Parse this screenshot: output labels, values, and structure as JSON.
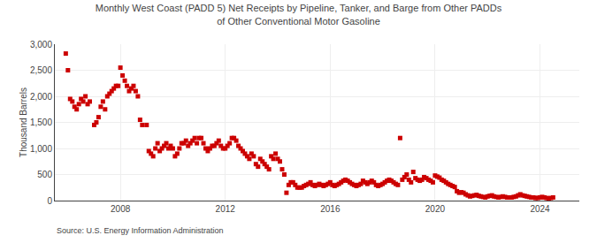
{
  "chart_data": {
    "type": "scatter",
    "title": "Monthly West Coast (PADD 5) Net Receipts by Pipeline, Tanker, and Barge from Other PADDs",
    "subtitle": "of Other Conventional Motor Gasoline",
    "ylabel": "Thousand Barrels",
    "annotations": [
      "Source: U.S. Energy Information Administration"
    ],
    "color": "#cc0000",
    "marker": "square",
    "grid": true,
    "xlim": [
      2005.5,
      2025.5
    ],
    "xticks": [
      2008,
      2012,
      2016,
      2020,
      2024
    ],
    "ylim": [
      0,
      3000
    ],
    "yticks": [
      0,
      500,
      {
        "value": 1000,
        "label": "1,000"
      },
      {
        "value": 1500,
        "label": "1,500"
      },
      {
        "value": 2000,
        "label": "2,000"
      },
      {
        "value": 2500,
        "label": "2,500"
      },
      {
        "value": 3000,
        "label": "3,000"
      }
    ],
    "x": [
      2005.917,
      2006.0,
      2006.083,
      2006.167,
      2006.25,
      2006.333,
      2006.417,
      2006.5,
      2006.583,
      2006.667,
      2006.75,
      2006.833,
      2007.0,
      2007.083,
      2007.167,
      2007.25,
      2007.333,
      2007.417,
      2007.5,
      2007.583,
      2007.667,
      2007.75,
      2007.833,
      2007.917,
      2008.0,
      2008.083,
      2008.167,
      2008.25,
      2008.333,
      2008.417,
      2008.5,
      2008.583,
      2008.667,
      2008.75,
      2008.833,
      2009.0,
      2009.083,
      2009.167,
      2009.25,
      2009.333,
      2009.417,
      2009.5,
      2009.583,
      2009.667,
      2009.75,
      2009.833,
      2009.917,
      2010.0,
      2010.083,
      2010.167,
      2010.25,
      2010.333,
      2010.417,
      2010.5,
      2010.583,
      2010.667,
      2010.75,
      2010.833,
      2010.917,
      2011.0,
      2011.083,
      2011.167,
      2011.25,
      2011.333,
      2011.417,
      2011.5,
      2011.583,
      2011.667,
      2011.75,
      2011.833,
      2011.917,
      2012.0,
      2012.083,
      2012.167,
      2012.25,
      2012.333,
      2012.417,
      2012.5,
      2012.583,
      2012.667,
      2012.75,
      2012.833,
      2012.917,
      2013.0,
      2013.083,
      2013.167,
      2013.25,
      2013.333,
      2013.417,
      2013.5,
      2013.583,
      2013.667,
      2013.75,
      2013.833,
      2013.917,
      2014.0,
      2014.083,
      2014.167,
      2014.25,
      2014.333,
      2014.417,
      2014.5,
      2014.583,
      2014.667,
      2014.75,
      2014.833,
      2014.917,
      2015.0,
      2015.083,
      2015.167,
      2015.25,
      2015.333,
      2015.417,
      2015.5,
      2015.583,
      2015.667,
      2015.75,
      2015.833,
      2015.917,
      2016.0,
      2016.083,
      2016.167,
      2016.25,
      2016.333,
      2016.417,
      2016.5,
      2016.583,
      2016.667,
      2016.75,
      2016.833,
      2016.917,
      2017.0,
      2017.083,
      2017.167,
      2017.25,
      2017.333,
      2017.417,
      2017.5,
      2017.583,
      2017.667,
      2017.75,
      2017.833,
      2017.917,
      2018.0,
      2018.083,
      2018.167,
      2018.25,
      2018.333,
      2018.417,
      2018.5,
      2018.583,
      2018.667,
      2018.75,
      2018.833,
      2018.917,
      2019.0,
      2019.083,
      2019.167,
      2019.25,
      2019.333,
      2019.417,
      2019.5,
      2019.583,
      2019.667,
      2019.75,
      2019.833,
      2019.917,
      2020.0,
      2020.083,
      2020.167,
      2020.25,
      2020.333,
      2020.417,
      2020.5,
      2020.583,
      2020.667,
      2020.75,
      2020.833,
      2020.917,
      2021.0,
      2021.083,
      2021.167,
      2021.25,
      2021.333,
      2021.417,
      2021.5,
      2021.583,
      2021.667,
      2021.75,
      2021.833,
      2021.917,
      2022.0,
      2022.083,
      2022.167,
      2022.25,
      2022.333,
      2022.417,
      2022.5,
      2022.583,
      2022.667,
      2022.75,
      2022.833,
      2022.917,
      2023.0,
      2023.083,
      2023.167,
      2023.25,
      2023.333,
      2023.417,
      2023.5,
      2023.583,
      2023.667,
      2023.75,
      2023.833,
      2023.917,
      2024.0,
      2024.083,
      2024.167,
      2024.25,
      2024.333,
      2024.417,
      2024.5
    ],
    "values": [
      2820,
      2500,
      1950,
      1900,
      1800,
      1750,
      1850,
      1950,
      1900,
      2000,
      1850,
      1900,
      1450,
      1500,
      1600,
      1800,
      1900,
      1750,
      2000,
      2050,
      2100,
      2150,
      2200,
      2200,
      2550,
      2400,
      2300,
      2200,
      2100,
      2150,
      2200,
      2100,
      2000,
      1550,
      1450,
      1450,
      950,
      900,
      850,
      1000,
      1100,
      950,
      1000,
      1050,
      1100,
      1000,
      1050,
      1000,
      850,
      900,
      1000,
      1100,
      1100,
      1150,
      1050,
      1100,
      1150,
      1200,
      1100,
      1200,
      1200,
      1100,
      1000,
      950,
      1000,
      1050,
      1050,
      1100,
      1150,
      1050,
      1000,
      1000,
      1050,
      1100,
      1200,
      1200,
      1150,
      1050,
      1000,
      950,
      900,
      850,
      800,
      900,
      850,
      700,
      650,
      800,
      750,
      700,
      650,
      600,
      850,
      800,
      900,
      800,
      750,
      600,
      500,
      150,
      300,
      350,
      350,
      300,
      250,
      250,
      250,
      280,
      300,
      320,
      350,
      300,
      280,
      300,
      320,
      300,
      280,
      300,
      320,
      350,
      300,
      280,
      300,
      320,
      350,
      380,
      400,
      380,
      350,
      320,
      300,
      280,
      300,
      320,
      380,
      350,
      320,
      350,
      380,
      350,
      300,
      280,
      300,
      320,
      350,
      380,
      400,
      380,
      350,
      320,
      300,
      1200,
      400,
      450,
      500,
      400,
      350,
      550,
      430,
      400,
      380,
      400,
      450,
      430,
      400,
      380,
      350,
      480,
      460,
      440,
      400,
      380,
      350,
      320,
      300,
      280,
      260,
      180,
      150,
      160,
      150,
      120,
      100,
      80,
      90,
      100,
      110,
      90,
      80,
      70,
      60,
      80,
      90,
      100,
      80,
      70,
      60,
      70,
      80,
      70,
      60,
      60,
      60,
      70,
      80,
      100,
      120,
      100,
      90,
      80,
      70,
      60,
      60,
      50,
      50,
      60,
      70,
      60,
      50,
      40,
      50,
      60
    ]
  }
}
